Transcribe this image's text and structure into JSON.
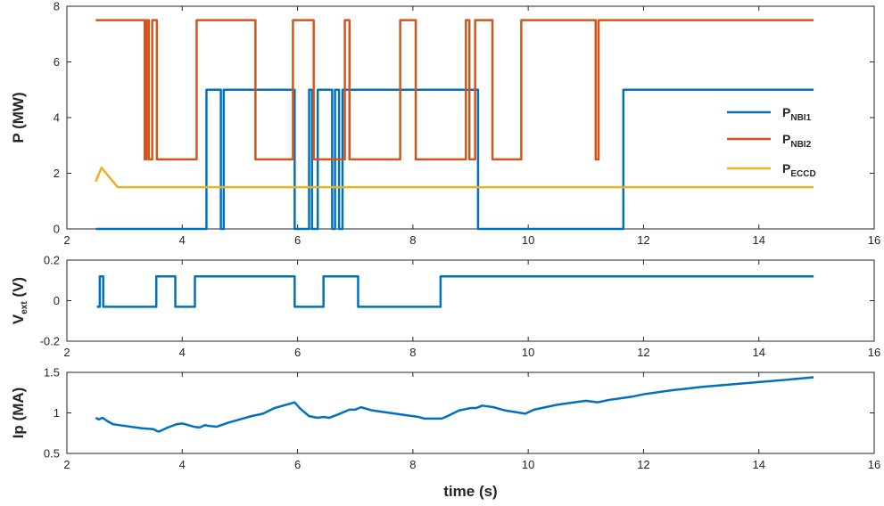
{
  "chart_data": [
    {
      "type": "line",
      "ylabel_main": "P (MW)",
      "xlabel": "",
      "xlim": [
        2,
        16
      ],
      "ylim": [
        0,
        8
      ],
      "xticks": [
        2,
        4,
        6,
        8,
        10,
        12,
        14,
        16
      ],
      "yticks": [
        0,
        2,
        4,
        6,
        8
      ],
      "legend_position": "right",
      "series": [
        {
          "name": "P",
          "name_sub": "NBI1",
          "color": "#0072bd",
          "x": [
            2.5,
            4.42,
            4.42,
            4.67,
            4.67,
            4.72,
            4.72,
            5.95,
            5.95,
            6.2,
            6.2,
            6.25,
            6.25,
            6.35,
            6.35,
            6.6,
            6.6,
            6.65,
            6.65,
            6.72,
            6.72,
            6.78,
            6.78,
            9.13,
            9.13,
            11.65,
            11.65,
            14.95
          ],
          "y": [
            0,
            0,
            5,
            5,
            0,
            0,
            5,
            5,
            0,
            0,
            5,
            5,
            0,
            0,
            5,
            5,
            0,
            0,
            5,
            5,
            0,
            0,
            5,
            5,
            0,
            0,
            5,
            5
          ]
        },
        {
          "name": "P",
          "name_sub": "NBI2",
          "color": "#d95319",
          "x": [
            2.5,
            3.35,
            3.35,
            3.38,
            3.38,
            3.42,
            3.42,
            3.48,
            3.48,
            3.56,
            3.56,
            4.25,
            4.25,
            5.27,
            5.27,
            5.92,
            5.92,
            6.28,
            6.28,
            6.82,
            6.82,
            6.9,
            6.9,
            7.78,
            7.78,
            8.05,
            8.05,
            8.92,
            8.92,
            8.98,
            8.98,
            9.08,
            9.08,
            9.38,
            9.38,
            9.88,
            9.88,
            11.17,
            11.17,
            11.22,
            11.22,
            14.95
          ],
          "y": [
            7.5,
            7.5,
            2.5,
            2.5,
            7.5,
            7.5,
            2.5,
            2.5,
            7.5,
            7.5,
            2.5,
            2.5,
            7.5,
            7.5,
            2.5,
            2.5,
            7.5,
            7.5,
            2.5,
            2.5,
            7.5,
            7.5,
            2.5,
            2.5,
            7.5,
            7.5,
            2.5,
            2.5,
            7.5,
            7.5,
            2.5,
            2.5,
            7.5,
            7.5,
            2.5,
            2.5,
            7.5,
            7.5,
            2.5,
            2.5,
            7.5,
            7.5
          ]
        },
        {
          "name": "P",
          "name_sub": "ECCD",
          "color": "#edb120",
          "x": [
            2.5,
            2.6,
            2.88,
            14.95
          ],
          "y": [
            1.7,
            2.2,
            1.5,
            1.5
          ]
        }
      ]
    },
    {
      "type": "line",
      "ylabel_main": "V",
      "ylabel_sub": "ext",
      "ylabel_unit": " (V)",
      "xlabel": "",
      "xlim": [
        2,
        16
      ],
      "ylim": [
        -0.2,
        0.2
      ],
      "xticks": [
        2,
        4,
        6,
        8,
        10,
        12,
        14,
        16
      ],
      "yticks": [
        -0.2,
        0,
        0.2
      ],
      "series": [
        {
          "color": "#0072bd",
          "x": [
            2.52,
            2.57,
            2.57,
            2.63,
            2.63,
            3.55,
            3.55,
            3.88,
            3.88,
            4.22,
            4.22,
            5.95,
            5.95,
            6.45,
            6.45,
            7.05,
            7.05,
            8.48,
            8.48,
            14.95
          ],
          "y": [
            -0.03,
            -0.03,
            0.12,
            0.12,
            -0.03,
            -0.03,
            0.12,
            0.12,
            -0.03,
            -0.03,
            0.12,
            0.12,
            -0.03,
            -0.03,
            0.12,
            0.12,
            -0.03,
            -0.03,
            0.12,
            0.12
          ]
        }
      ]
    },
    {
      "type": "line",
      "ylabel_main": "Ip (MA)",
      "xlabel": "time (s)",
      "xlim": [
        2,
        16
      ],
      "ylim": [
        0.5,
        1.5
      ],
      "xticks": [
        2,
        4,
        6,
        8,
        10,
        12,
        14,
        16
      ],
      "yticks": [
        0.5,
        1,
        1.5
      ],
      "series": [
        {
          "color": "#0072bd",
          "x": [
            2.5,
            2.55,
            2.62,
            2.7,
            2.8,
            3.0,
            3.3,
            3.5,
            3.55,
            3.6,
            3.75,
            3.9,
            4.0,
            4.2,
            4.3,
            4.4,
            4.45,
            4.6,
            4.8,
            5.0,
            5.2,
            5.4,
            5.6,
            5.8,
            5.95,
            6.05,
            6.2,
            6.35,
            6.45,
            6.55,
            6.7,
            6.9,
            7.0,
            7.1,
            7.3,
            7.6,
            7.9,
            8.1,
            8.2,
            8.5,
            8.6,
            8.8,
            9.0,
            9.1,
            9.2,
            9.4,
            9.6,
            9.95,
            10.1,
            10.5,
            11.0,
            11.2,
            11.4,
            11.6,
            11.8,
            12.0,
            12.5,
            13.0,
            13.5,
            14.0,
            14.5,
            14.95
          ],
          "y": [
            0.94,
            0.92,
            0.94,
            0.9,
            0.86,
            0.84,
            0.81,
            0.8,
            0.78,
            0.77,
            0.82,
            0.86,
            0.87,
            0.83,
            0.82,
            0.85,
            0.84,
            0.83,
            0.88,
            0.92,
            0.96,
            0.99,
            1.06,
            1.1,
            1.13,
            1.05,
            0.96,
            0.94,
            0.95,
            0.94,
            0.98,
            1.04,
            1.04,
            1.07,
            1.03,
            1.0,
            0.97,
            0.95,
            0.93,
            0.93,
            0.96,
            1.03,
            1.06,
            1.06,
            1.09,
            1.07,
            1.03,
            0.99,
            1.04,
            1.1,
            1.15,
            1.13,
            1.16,
            1.18,
            1.2,
            1.23,
            1.28,
            1.32,
            1.35,
            1.38,
            1.41,
            1.44
          ]
        }
      ]
    }
  ]
}
